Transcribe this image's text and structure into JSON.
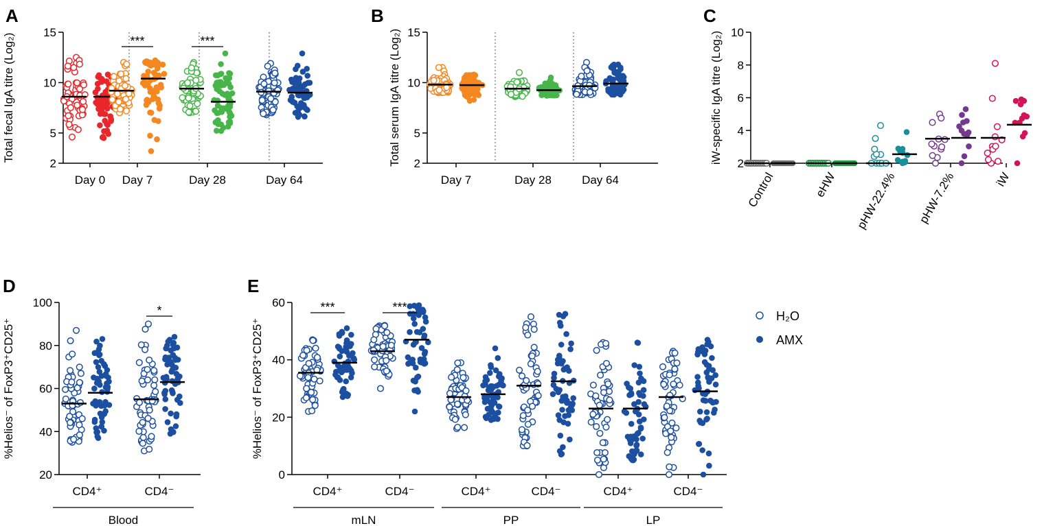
{
  "legend": {
    "h2o_label": "H₂O",
    "amx_label": "AMX"
  },
  "chart_data": [
    {
      "id": "A",
      "panel_label": "A",
      "type": "scatter",
      "ylabel": "Total fecal IgA titre (Log₂)",
      "ylim": [
        2,
        15
      ],
      "yticks": [
        2,
        5,
        10,
        15
      ],
      "groups": [
        {
          "name": "Day 0",
          "color": "#e8262b",
          "h2o": {
            "n": 60,
            "mean": 8.6,
            "min": 4.6,
            "max": 12.5
          },
          "amx": {
            "n": 62,
            "mean": 8.6,
            "min": 4.5,
            "max": 10.8
          },
          "sig": ""
        },
        {
          "name": "Day 7",
          "color": "#f4871f",
          "h2o": {
            "n": 60,
            "mean": 9.2,
            "min": 7.0,
            "max": 12.0
          },
          "amx": {
            "n": 62,
            "mean": 10.4,
            "min": 3.2,
            "max": 12.2
          },
          "sig": "***"
        },
        {
          "name": "Day 28",
          "color": "#47b54a",
          "h2o": {
            "n": 60,
            "mean": 9.4,
            "min": 7.0,
            "max": 12.0
          },
          "amx": {
            "n": 62,
            "mean": 8.1,
            "min": 5.2,
            "max": 12.9
          },
          "sig": "***"
        },
        {
          "name": "Day 64",
          "color": "#1c4fa0",
          "h2o": {
            "n": 62,
            "mean": 9.1,
            "min": 6.8,
            "max": 11.9
          },
          "amx": {
            "n": 62,
            "mean": 9.0,
            "min": 6.6,
            "max": 12.9
          },
          "sig": ""
        }
      ]
    },
    {
      "id": "B",
      "panel_label": "B",
      "type": "scatter",
      "ylabel": "Total serum IgA titre (Log₂)",
      "ylim": [
        2,
        15
      ],
      "yticks": [
        2,
        5,
        10,
        15
      ],
      "groups": [
        {
          "name": "Day 7",
          "color": "#f4871f",
          "h2o": {
            "n": 60,
            "mean": 9.8,
            "min": 9.0,
            "max": 11.5
          },
          "amx": {
            "n": 62,
            "mean": 9.75,
            "min": 8.2,
            "max": 10.8
          },
          "sig": ""
        },
        {
          "name": "Day 28",
          "color": "#47b54a",
          "h2o": {
            "n": 60,
            "mean": 9.4,
            "min": 8.6,
            "max": 11.0
          },
          "amx": {
            "n": 62,
            "mean": 9.25,
            "min": 8.7,
            "max": 10.5
          },
          "sig": ""
        },
        {
          "name": "Day 64",
          "color": "#1c4fa0",
          "h2o": {
            "n": 62,
            "mean": 9.65,
            "min": 8.8,
            "max": 12.0
          },
          "amx": {
            "n": 62,
            "mean": 9.9,
            "min": 8.8,
            "max": 11.8
          },
          "sig": ""
        }
      ]
    },
    {
      "id": "C",
      "panel_label": "C",
      "type": "scatter",
      "ylabel": "iW-specific IgA titre (Log₂)",
      "ylim": [
        2,
        10
      ],
      "yticks": [
        2,
        4,
        6,
        8,
        10
      ],
      "groups": [
        {
          "name": "Control",
          "color": "#6d6e71",
          "h2o": {
            "n": 12,
            "mean": 2.0,
            "min": 2.0,
            "max": 2.0
          },
          "amx": {
            "n": 12,
            "mean": 2.0,
            "min": 2.0,
            "max": 2.0
          },
          "sig": ""
        },
        {
          "name": "eHW",
          "color": "#1e9a46",
          "h2o": {
            "n": 12,
            "mean": 2.0,
            "min": 2.0,
            "max": 2.0
          },
          "amx": {
            "n": 12,
            "mean": 2.0,
            "min": 2.0,
            "max": 2.0
          },
          "sig": ""
        },
        {
          "name": "pHW-22.4%",
          "color": "#1a8f9a",
          "h2o": {
            "n": 12,
            "mean": 2.0,
            "min": 2.0,
            "max": 4.3
          },
          "amx": {
            "n": 12,
            "mean": 2.55,
            "min": 2.0,
            "max": 3.9
          },
          "sig": ""
        },
        {
          "name": "pHW-7.2%",
          "color": "#74398f",
          "h2o": {
            "n": 12,
            "mean": 3.5,
            "min": 2.0,
            "max": 5.0
          },
          "amx": {
            "n": 12,
            "mean": 3.55,
            "min": 2.0,
            "max": 5.3
          },
          "sig": ""
        },
        {
          "name": "iW",
          "color": "#d4145a",
          "h2o": {
            "n": 12,
            "mean": 3.55,
            "min": 2.0,
            "max": 8.1
          },
          "amx": {
            "n": 12,
            "mean": 4.35,
            "min": 2.0,
            "max": 5.9
          },
          "sig": ""
        }
      ]
    },
    {
      "id": "D",
      "panel_label": "D",
      "type": "scatter",
      "ylabel": "%Helios⁻ of FoxP3⁺CD25⁺",
      "ylim": [
        20,
        100
      ],
      "yticks": [
        20,
        40,
        60,
        80,
        100
      ],
      "color": "#1c4fa0",
      "groups": [
        {
          "name": "CD4⁺",
          "h2o": {
            "n": 55,
            "mean": 53,
            "min": 35,
            "max": 87
          },
          "amx": {
            "n": 55,
            "mean": 58,
            "min": 37,
            "max": 83
          },
          "sig": ""
        },
        {
          "name": "CD4⁻",
          "h2o": {
            "n": 55,
            "mean": 55,
            "min": 31,
            "max": 90
          },
          "amx": {
            "n": 55,
            "mean": 63,
            "min": 39,
            "max": 84
          },
          "sig": "*"
        }
      ],
      "group_bars": [
        {
          "label": "Blood",
          "span": [
            0,
            1
          ]
        }
      ]
    },
    {
      "id": "E",
      "panel_label": "E",
      "type": "scatter",
      "ylabel": "%Helios⁻ of FoxP3⁺CD25⁺",
      "ylim": [
        0,
        60
      ],
      "yticks": [
        0,
        20,
        40,
        60
      ],
      "color": "#1c4fa0",
      "groups": [
        {
          "name": "CD4⁺",
          "h2o": {
            "n": 55,
            "mean": 35.5,
            "min": 22,
            "max": 47
          },
          "amx": {
            "n": 55,
            "mean": 39,
            "min": 27,
            "max": 51
          },
          "sig": "***"
        },
        {
          "name": "CD4⁻",
          "h2o": {
            "n": 55,
            "mean": 43,
            "min": 30,
            "max": 52
          },
          "amx": {
            "n": 55,
            "mean": 47,
            "min": 22,
            "max": 59
          },
          "sig": "***"
        },
        {
          "name": "CD4⁺",
          "h2o": {
            "n": 55,
            "mean": 27,
            "min": 16,
            "max": 39
          },
          "amx": {
            "n": 55,
            "mean": 28,
            "min": 19,
            "max": 44
          },
          "sig": ""
        },
        {
          "name": "CD4⁻",
          "h2o": {
            "n": 55,
            "mean": 31,
            "min": 10,
            "max": 55
          },
          "amx": {
            "n": 55,
            "mean": 32.5,
            "min": 7,
            "max": 56
          },
          "sig": ""
        },
        {
          "name": "CD4⁺",
          "h2o": {
            "n": 55,
            "mean": 23,
            "min": 0,
            "max": 46
          },
          "amx": {
            "n": 55,
            "mean": 23,
            "min": 5,
            "max": 46
          },
          "sig": ""
        },
        {
          "name": "CD4⁻",
          "h2o": {
            "n": 55,
            "mean": 27,
            "min": 0,
            "max": 43
          },
          "amx": {
            "n": 55,
            "mean": 29,
            "min": 0,
            "max": 47
          },
          "sig": ""
        }
      ],
      "group_bars": [
        {
          "label": "mLN",
          "span": [
            0,
            1
          ]
        },
        {
          "label": "PP",
          "span": [
            2,
            3
          ]
        },
        {
          "label": "LP",
          "span": [
            4,
            5
          ]
        }
      ]
    }
  ]
}
